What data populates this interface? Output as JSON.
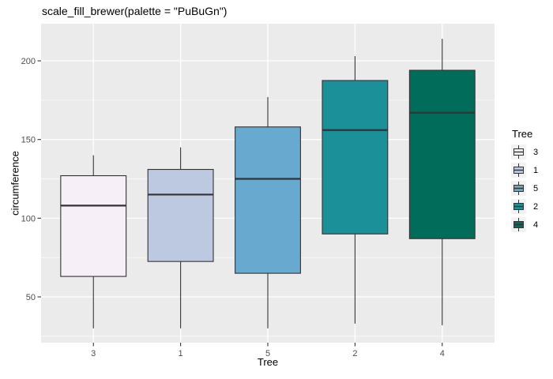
{
  "chart_data": {
    "type": "boxplot",
    "title": "scale_fill_brewer(palette = \"PuBuGn\")",
    "xlabel": "Tree",
    "ylabel": "circumference",
    "categories": [
      "3",
      "1",
      "5",
      "2",
      "4"
    ],
    "y_ticks": [
      50,
      100,
      150,
      200
    ],
    "y_minor_gridlines": [
      25,
      75,
      125,
      175
    ],
    "ylim": [
      20.9,
      223.6
    ],
    "grid": "major-and-minor-white-on-grey",
    "legend_position": "right",
    "series": [
      {
        "category": "3",
        "min": 30,
        "q1": 63,
        "median": 108,
        "q3": 127,
        "max": 140,
        "fill": "#F6EFF7"
      },
      {
        "category": "1",
        "min": 30,
        "q1": 72.5,
        "median": 115,
        "q3": 131,
        "max": 145,
        "fill": "#BDC9E1"
      },
      {
        "category": "5",
        "min": 30,
        "q1": 65,
        "median": 125,
        "q3": 158,
        "max": 177,
        "fill": "#67A9CF"
      },
      {
        "category": "2",
        "min": 33,
        "q1": 90,
        "median": 156,
        "q3": 187.5,
        "max": 203,
        "fill": "#1C9099"
      },
      {
        "category": "4",
        "min": 32,
        "q1": 87,
        "median": 167,
        "q3": 194,
        "max": 214,
        "fill": "#016C59"
      }
    ],
    "legend": {
      "title": "Tree",
      "items": [
        {
          "label": "3",
          "fill": "#F6EFF7"
        },
        {
          "label": "1",
          "fill": "#BDC9E1"
        },
        {
          "label": "5",
          "fill": "#67A9CF"
        },
        {
          "label": "2",
          "fill": "#1C9099"
        },
        {
          "label": "4",
          "fill": "#016C59"
        }
      ]
    },
    "colors": {
      "panel_bg": "#EBEBEB",
      "grid": "#FFFFFF",
      "box_border": "#333333",
      "tick_mark": "#333333",
      "tick_label": "#4D4D4D",
      "legend_key_bg": "#F2F2F2",
      "text": "#000000"
    }
  }
}
